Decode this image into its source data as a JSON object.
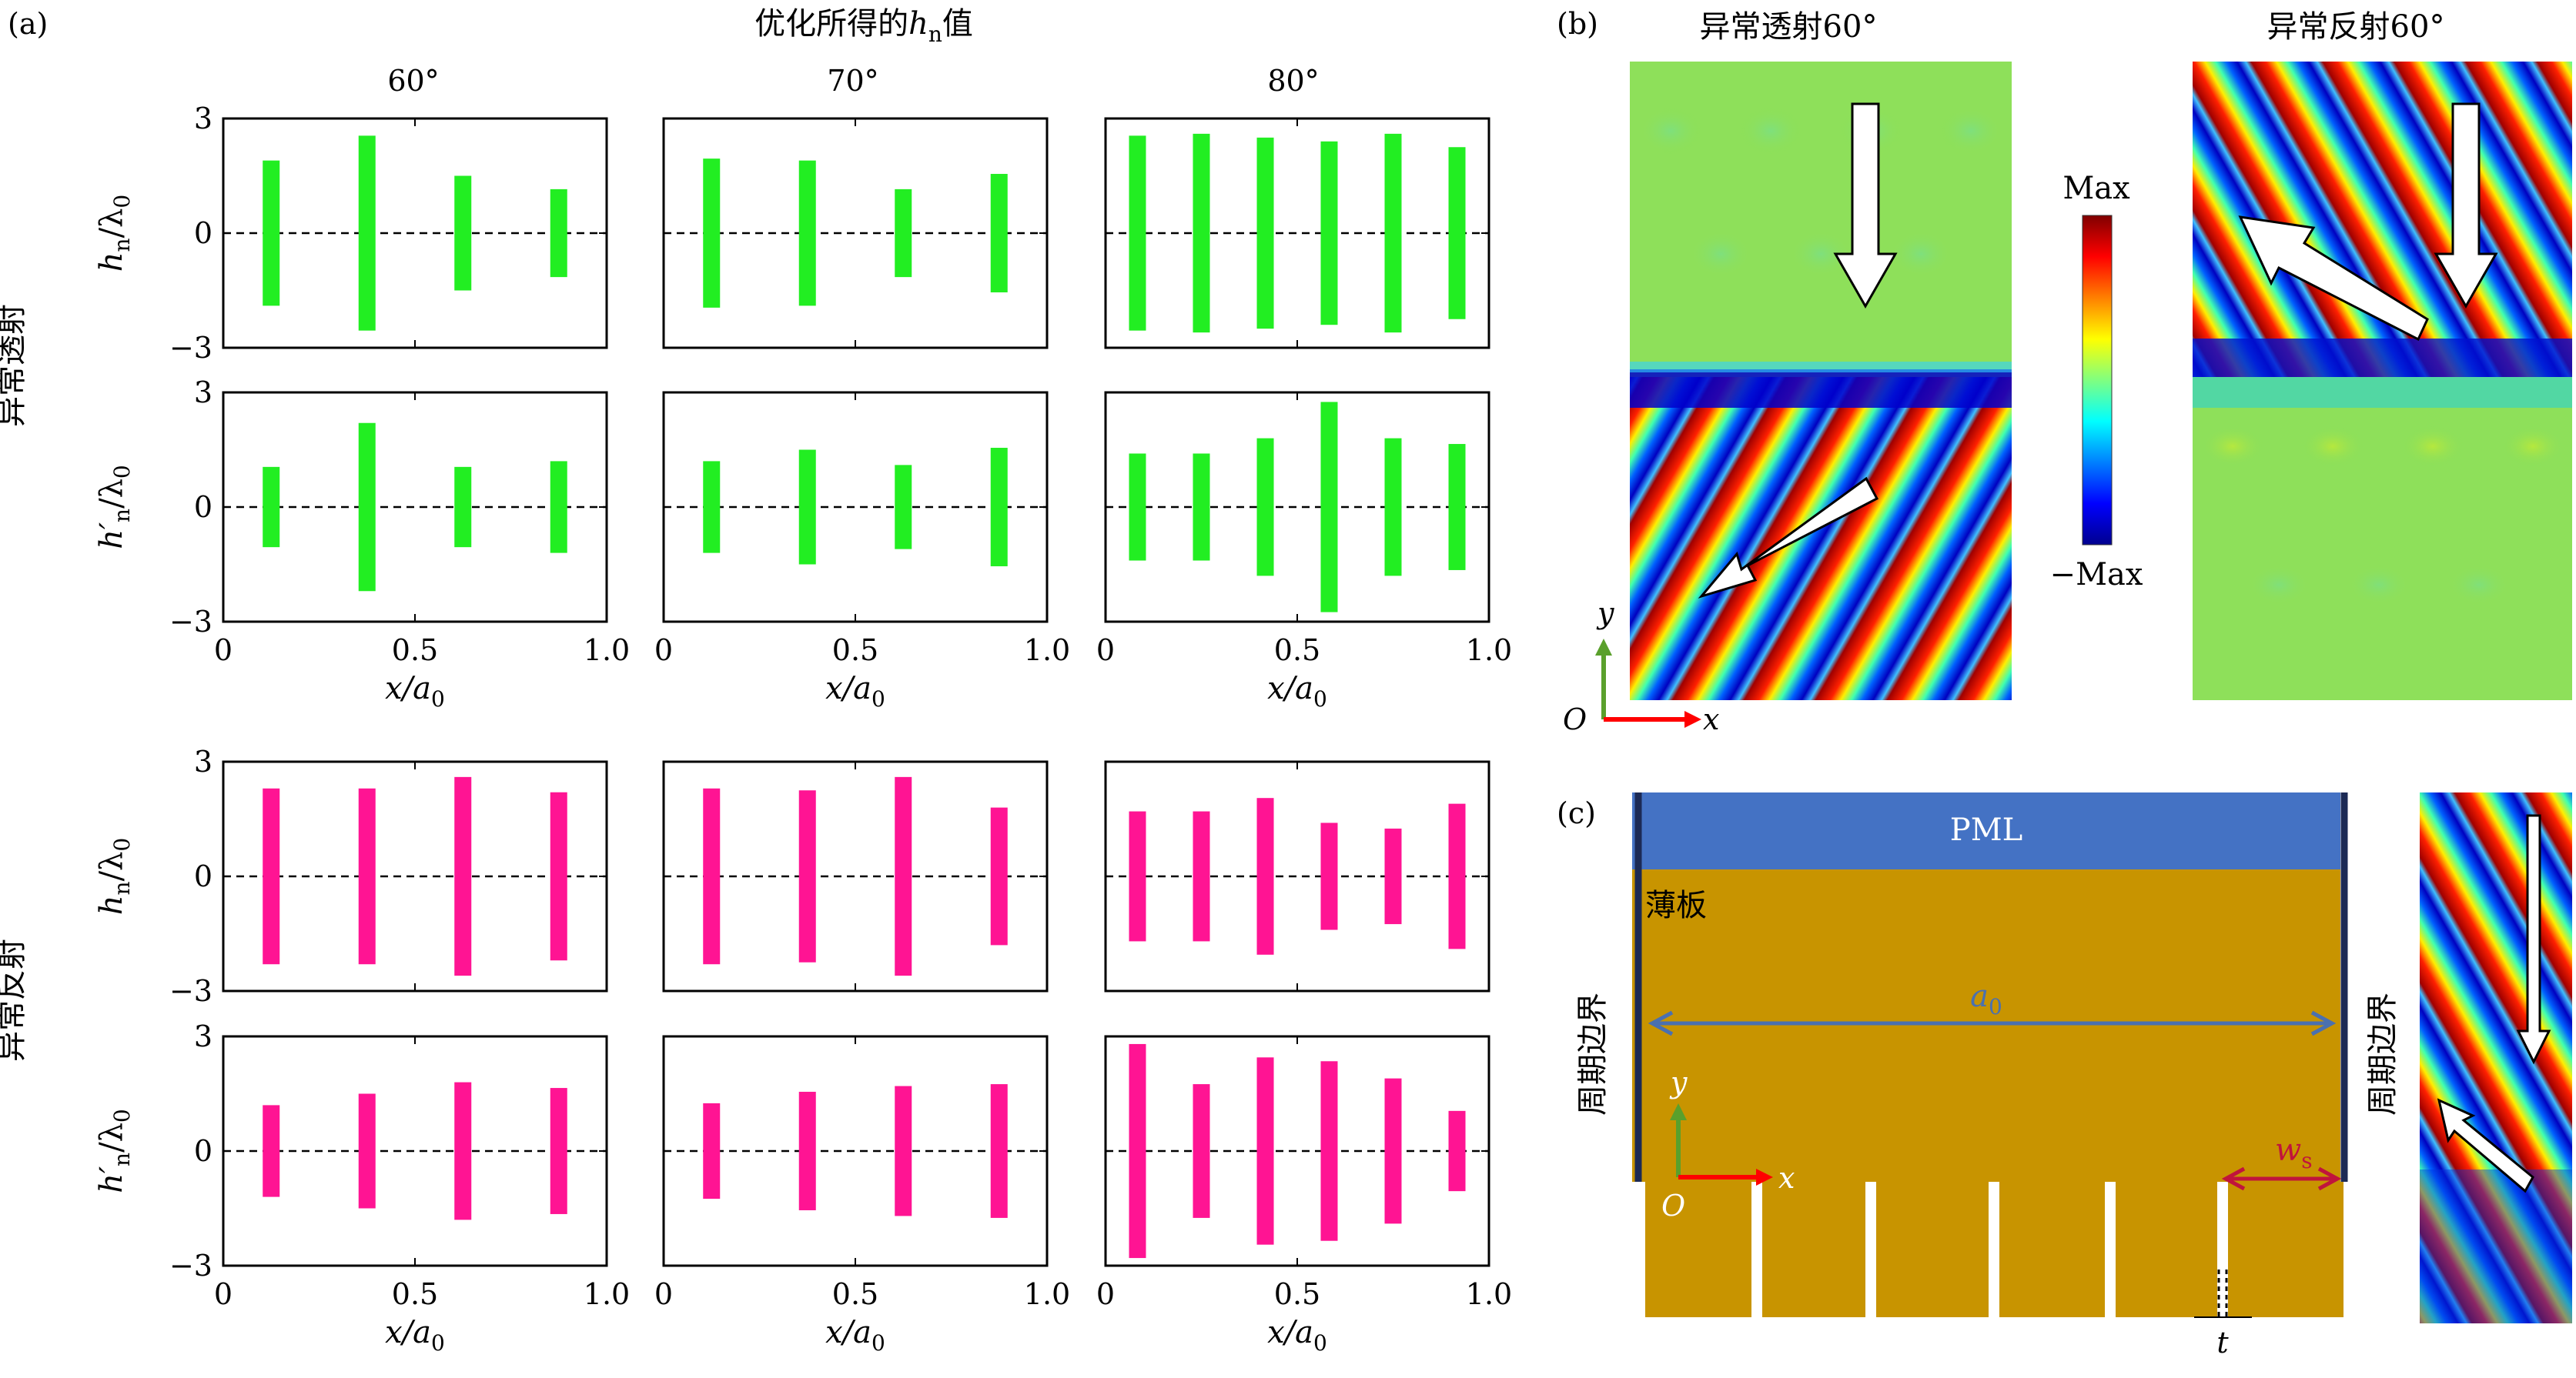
{
  "panel_a": {
    "label": "(a)",
    "heading": "优化所得的h_n值",
    "heading_main": "优化所得的",
    "heading_var": "h",
    "heading_sub": "n",
    "heading_tail": "值",
    "column_titles": [
      "60°",
      "70°",
      "80°"
    ],
    "row_group_labels": [
      "异常透射",
      "异常反射"
    ],
    "ylabel_h": "h_n/λ0",
    "ylabel_hprime": "h′_n/λ0",
    "xlabel": "x/a0",
    "yticks": [
      "3",
      "0",
      "−3"
    ],
    "xticks": [
      "0",
      "0.5",
      "1.0"
    ],
    "colors": {
      "transmission": "#22ee22",
      "reflection": "#ff1493"
    }
  },
  "chart_data": [
    {
      "type": "bar",
      "group": "异常透射",
      "angle": "60°",
      "ylabel": "h_n/λ0",
      "xlabel": "",
      "ylim": [
        -3,
        3
      ],
      "xlim": [
        0,
        1
      ],
      "x": [
        0.125,
        0.375,
        0.625,
        0.875
      ],
      "values": [
        1.9,
        2.55,
        1.5,
        1.15
      ]
    },
    {
      "type": "bar",
      "group": "异常透射",
      "angle": "70°",
      "ylabel": "h_n/λ0",
      "xlabel": "",
      "ylim": [
        -3,
        3
      ],
      "xlim": [
        0,
        1
      ],
      "x": [
        0.125,
        0.375,
        0.625,
        0.875
      ],
      "values": [
        1.95,
        1.9,
        1.15,
        1.55
      ]
    },
    {
      "type": "bar",
      "group": "异常透射",
      "angle": "80°",
      "ylabel": "h_n/λ0",
      "xlabel": "",
      "ylim": [
        -3,
        3
      ],
      "xlim": [
        0,
        1
      ],
      "x": [
        0.0833,
        0.25,
        0.4167,
        0.5833,
        0.75,
        0.9167
      ],
      "values": [
        2.55,
        2.6,
        2.5,
        2.4,
        2.6,
        2.25
      ]
    },
    {
      "type": "bar",
      "group": "异常透射",
      "angle": "60°",
      "ylabel": "h′_n/λ0",
      "xlabel": "x/a0",
      "ylim": [
        -3,
        3
      ],
      "xlim": [
        0,
        1
      ],
      "x": [
        0.125,
        0.375,
        0.625,
        0.875
      ],
      "values": [
        1.05,
        2.2,
        1.05,
        1.2
      ]
    },
    {
      "type": "bar",
      "group": "异常透射",
      "angle": "70°",
      "ylabel": "h′_n/λ0",
      "xlabel": "x/a0",
      "ylim": [
        -3,
        3
      ],
      "xlim": [
        0,
        1
      ],
      "x": [
        0.125,
        0.375,
        0.625,
        0.875
      ],
      "values": [
        1.2,
        1.5,
        1.1,
        1.55
      ]
    },
    {
      "type": "bar",
      "group": "异常透射",
      "angle": "80°",
      "ylabel": "h′_n/λ0",
      "xlabel": "x/a0",
      "ylim": [
        -3,
        3
      ],
      "xlim": [
        0,
        1
      ],
      "x": [
        0.0833,
        0.25,
        0.4167,
        0.5833,
        0.75,
        0.9167
      ],
      "values": [
        1.4,
        1.4,
        1.8,
        2.75,
        1.8,
        1.65
      ]
    },
    {
      "type": "bar",
      "group": "异常反射",
      "angle": "60°",
      "ylabel": "h_n/λ0",
      "xlabel": "",
      "ylim": [
        -3,
        3
      ],
      "xlim": [
        0,
        1
      ],
      "x": [
        0.125,
        0.375,
        0.625,
        0.875
      ],
      "values": [
        2.3,
        2.3,
        2.6,
        2.2
      ]
    },
    {
      "type": "bar",
      "group": "异常反射",
      "angle": "70°",
      "ylabel": "h_n/λ0",
      "xlabel": "",
      "ylim": [
        -3,
        3
      ],
      "xlim": [
        0,
        1
      ],
      "x": [
        0.125,
        0.375,
        0.625,
        0.875
      ],
      "values": [
        2.3,
        2.25,
        2.6,
        1.8
      ]
    },
    {
      "type": "bar",
      "group": "异常反射",
      "angle": "80°",
      "ylabel": "h_n/λ0",
      "xlabel": "",
      "ylim": [
        -3,
        3
      ],
      "xlim": [
        0,
        1
      ],
      "x": [
        0.0833,
        0.25,
        0.4167,
        0.5833,
        0.75,
        0.9167
      ],
      "values": [
        1.7,
        1.7,
        2.05,
        1.4,
        1.25,
        1.9
      ]
    },
    {
      "type": "bar",
      "group": "异常反射",
      "angle": "60°",
      "ylabel": "h′_n/λ0",
      "xlabel": "x/a0",
      "ylim": [
        -3,
        3
      ],
      "xlim": [
        0,
        1
      ],
      "x": [
        0.125,
        0.375,
        0.625,
        0.875
      ],
      "values": [
        1.2,
        1.5,
        1.8,
        1.65
      ]
    },
    {
      "type": "bar",
      "group": "异常反射",
      "angle": "70°",
      "ylabel": "h′_n/λ0",
      "xlabel": "x/a0",
      "ylim": [
        -3,
        3
      ],
      "xlim": [
        0,
        1
      ],
      "x": [
        0.125,
        0.375,
        0.625,
        0.875
      ],
      "values": [
        1.25,
        1.55,
        1.7,
        1.75
      ]
    },
    {
      "type": "bar",
      "group": "异常反射",
      "angle": "80°",
      "ylabel": "h′_n/λ0",
      "xlabel": "x/a0",
      "ylim": [
        -3,
        3
      ],
      "xlim": [
        0,
        1
      ],
      "x": [
        0.0833,
        0.25,
        0.4167,
        0.5833,
        0.75,
        0.9167
      ],
      "values": [
        2.8,
        1.75,
        2.45,
        2.35,
        1.9,
        1.05
      ]
    }
  ],
  "panel_b": {
    "label": "(b)",
    "title_left": "异常透射60°",
    "title_right": "异常反射60°",
    "colorbar_max": "Max",
    "colorbar_min": "−Max",
    "axis_y": "y",
    "axis_x": "x",
    "origin": "O"
  },
  "panel_c": {
    "label": "(c)",
    "pml": "PML",
    "plate": "薄板",
    "periodic_left": "周期边界",
    "periodic_right": "周期边界",
    "a0_var": "a",
    "a0_sub": "0",
    "ws_var": "w",
    "ws_sub": "s",
    "t": "t",
    "axis_y": "y",
    "axis_x": "x",
    "origin": "O",
    "colors": {
      "pml": "#4472c4",
      "plate": "#c89400"
    }
  }
}
